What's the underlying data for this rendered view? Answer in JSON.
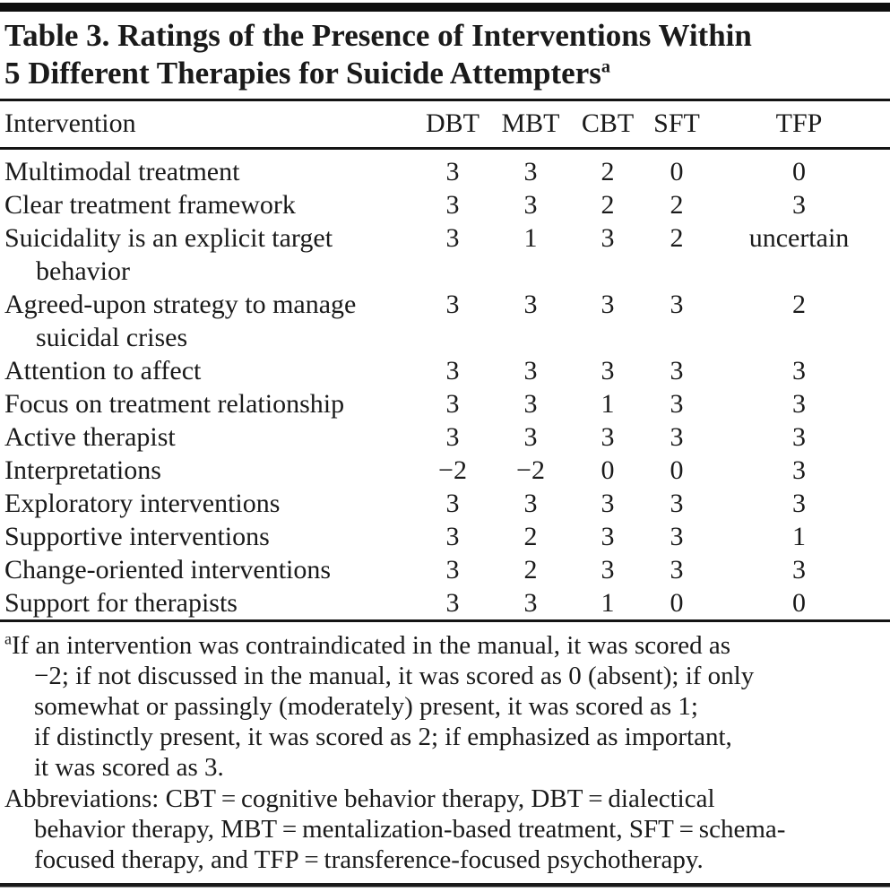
{
  "table": {
    "title_lines": [
      "Table 3. Ratings of the Presence of Interventions Within",
      "5 Different Therapies for Suicide Attempters"
    ],
    "title_superscript": "a",
    "columns": [
      "Intervention",
      "DBT",
      "MBT",
      "CBT",
      "SFT",
      "TFP"
    ],
    "rows": [
      {
        "label": "Multimodal treatment",
        "values": [
          "3",
          "3",
          "2",
          "0",
          "0"
        ]
      },
      {
        "label": "Clear treatment framework",
        "values": [
          "3",
          "3",
          "2",
          "2",
          "3"
        ]
      },
      {
        "label": "Suicidality is an explicit target\nbehavior",
        "values": [
          "3",
          "1",
          "3",
          "2",
          "uncertain"
        ]
      },
      {
        "label": "Agreed-upon strategy to manage\nsuicidal crises",
        "values": [
          "3",
          "3",
          "3",
          "3",
          "2"
        ]
      },
      {
        "label": "Attention to affect",
        "values": [
          "3",
          "3",
          "3",
          "3",
          "3"
        ]
      },
      {
        "label": "Focus on treatment relationship",
        "values": [
          "3",
          "3",
          "1",
          "3",
          "3"
        ]
      },
      {
        "label": "Active therapist",
        "values": [
          "3",
          "3",
          "3",
          "3",
          "3"
        ]
      },
      {
        "label": "Interpretations",
        "values": [
          "−2",
          "−2",
          "0",
          "0",
          "3"
        ]
      },
      {
        "label": "Exploratory interventions",
        "values": [
          "3",
          "3",
          "3",
          "3",
          "3"
        ]
      },
      {
        "label": "Supportive interventions",
        "values": [
          "3",
          "2",
          "3",
          "3",
          "1"
        ]
      },
      {
        "label": "Change-oriented interventions",
        "values": [
          "3",
          "2",
          "3",
          "3",
          "3"
        ]
      },
      {
        "label": "Support for therapists",
        "values": [
          "3",
          "3",
          "1",
          "0",
          "0"
        ]
      }
    ]
  },
  "footnotes": {
    "score_note": {
      "marker": "a",
      "lines": [
        "If an intervention was contraindicated in the manual, it was scored as",
        "−2; if not discussed in the manual, it was scored as 0 (absent); if only",
        "somewhat or passingly (moderately) present, it was scored as 1;",
        "if distinctly present, it was scored as 2; if emphasized as important,",
        "it was scored as 3."
      ]
    },
    "abbreviations": {
      "lines": [
        "Abbreviations: CBT = cognitive behavior therapy, DBT = dialectical",
        "behavior therapy, MBT = mentalization-based treatment, SFT = schema-",
        "focused therapy, and TFP = transference-focused psychotherapy."
      ]
    }
  },
  "colors": {
    "text": "#1a1a1a",
    "rule": "#141414",
    "background": "#ffffff"
  }
}
